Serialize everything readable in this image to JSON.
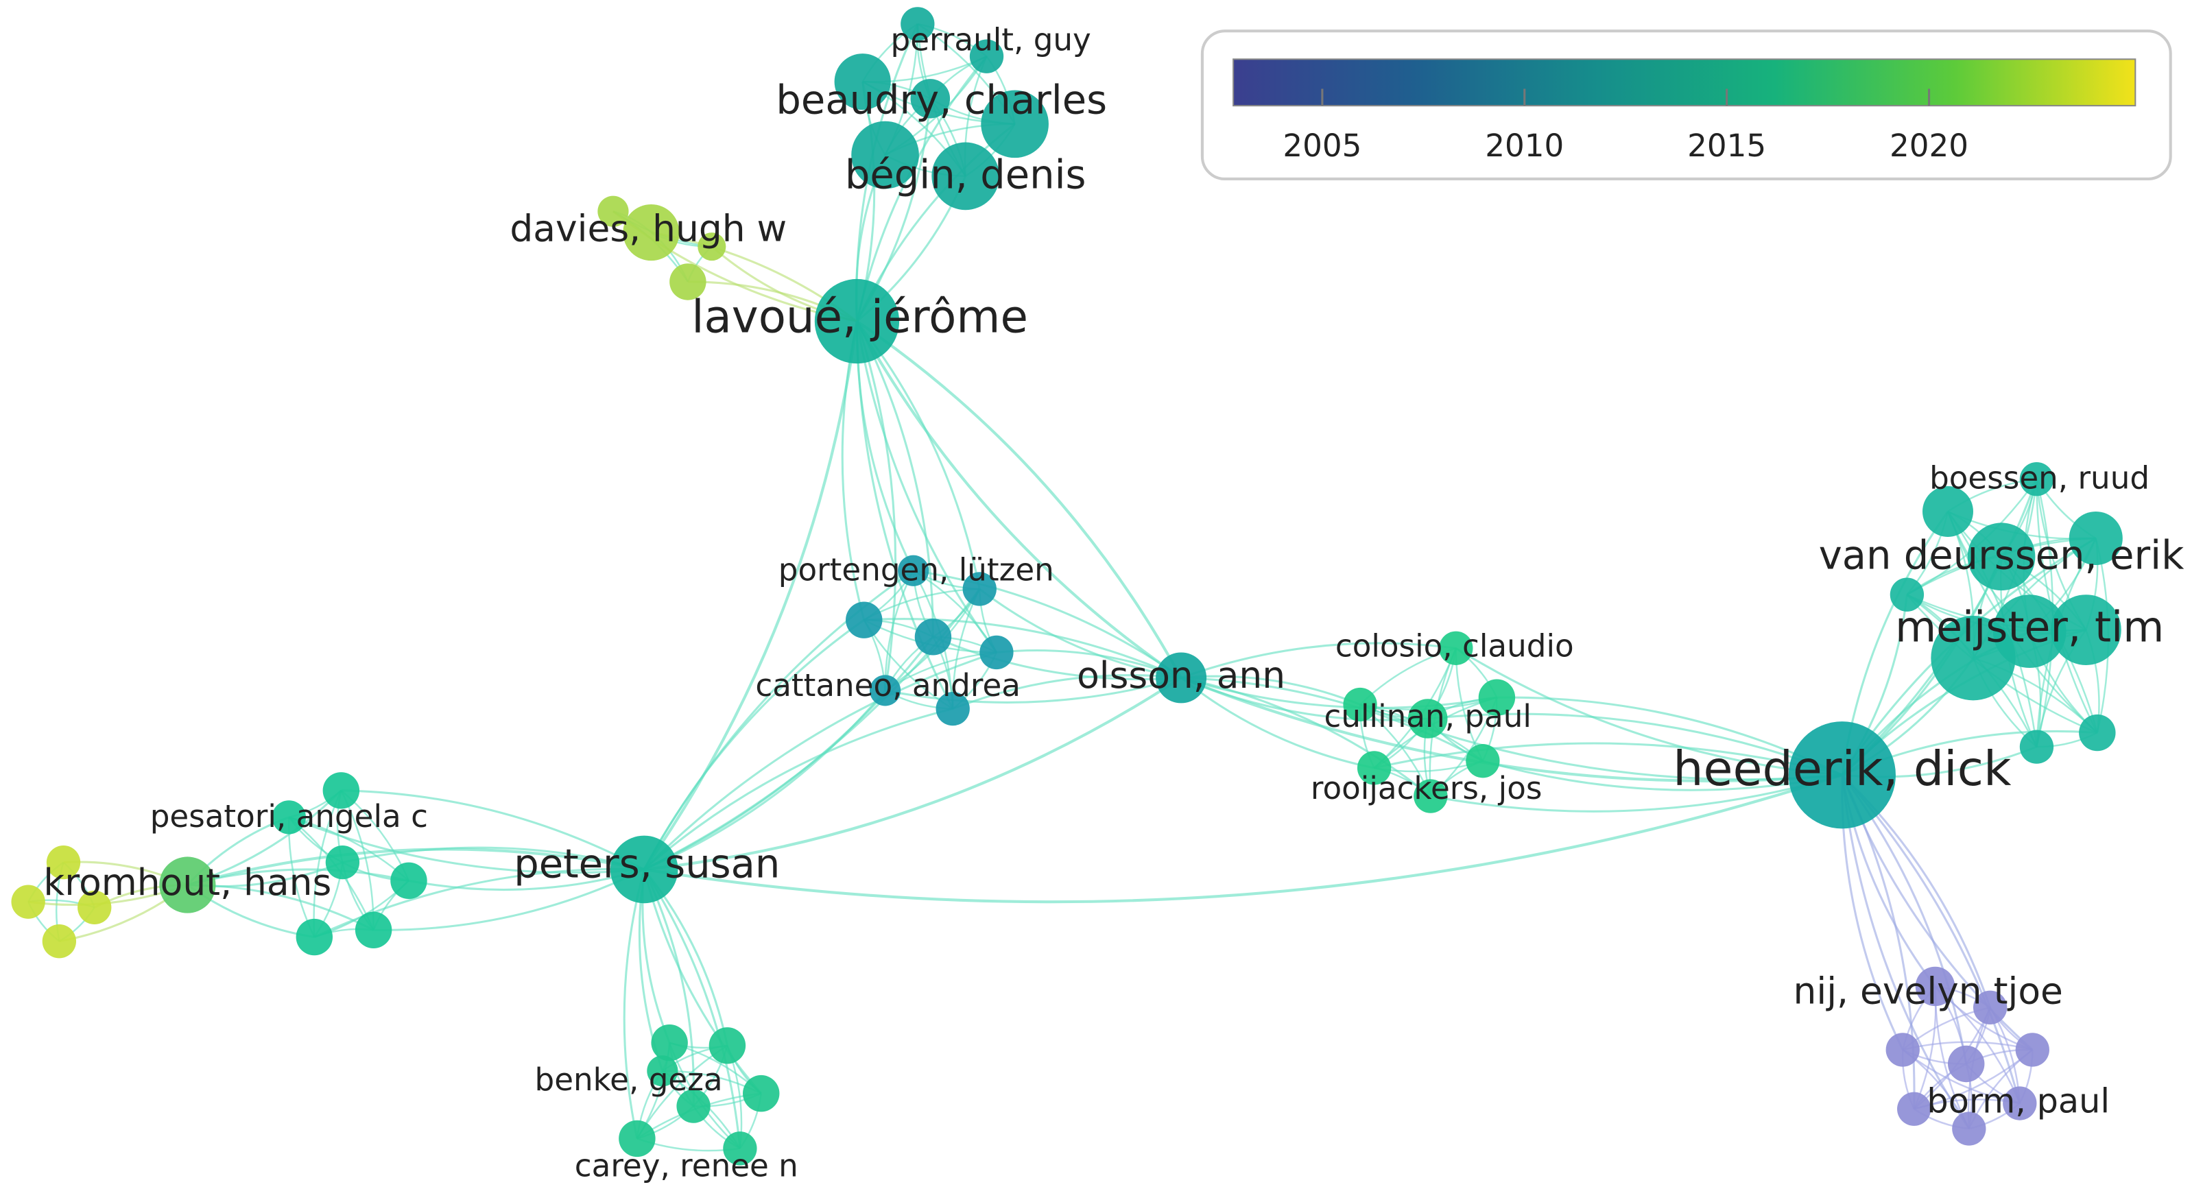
{
  "colorbar": {
    "lim": [
      2002.8,
      2025.1
    ],
    "ticks": [
      2005,
      2010,
      2015,
      2020
    ]
  },
  "nodes": [
    {
      "label": "perrault, guy"
    },
    {
      "label": "beaudry, charles"
    },
    {
      "label": "bégin, denis"
    },
    {
      "label": "davies, hugh w"
    },
    {
      "label": "lavoué, jérôme"
    },
    {
      "label": "portengen, lützen"
    },
    {
      "label": "cattaneo, andrea"
    },
    {
      "label": "olsson, ann"
    },
    {
      "label": "colosio, claudio"
    },
    {
      "label": "cullinan, paul"
    },
    {
      "label": "rooijackers, jos"
    },
    {
      "label": "heederik, dick"
    },
    {
      "label": "boessen, ruud"
    },
    {
      "label": "van deurssen, erik"
    },
    {
      "label": "meijster, tim"
    },
    {
      "label": "nij, evelyn tjoe"
    },
    {
      "label": "borm, paul"
    },
    {
      "label": "pesatori, angela c"
    },
    {
      "label": "kromhout, hans"
    },
    {
      "label": "peters, susan"
    },
    {
      "label": "benke, geza"
    },
    {
      "label": "carey, renee n"
    }
  ]
}
